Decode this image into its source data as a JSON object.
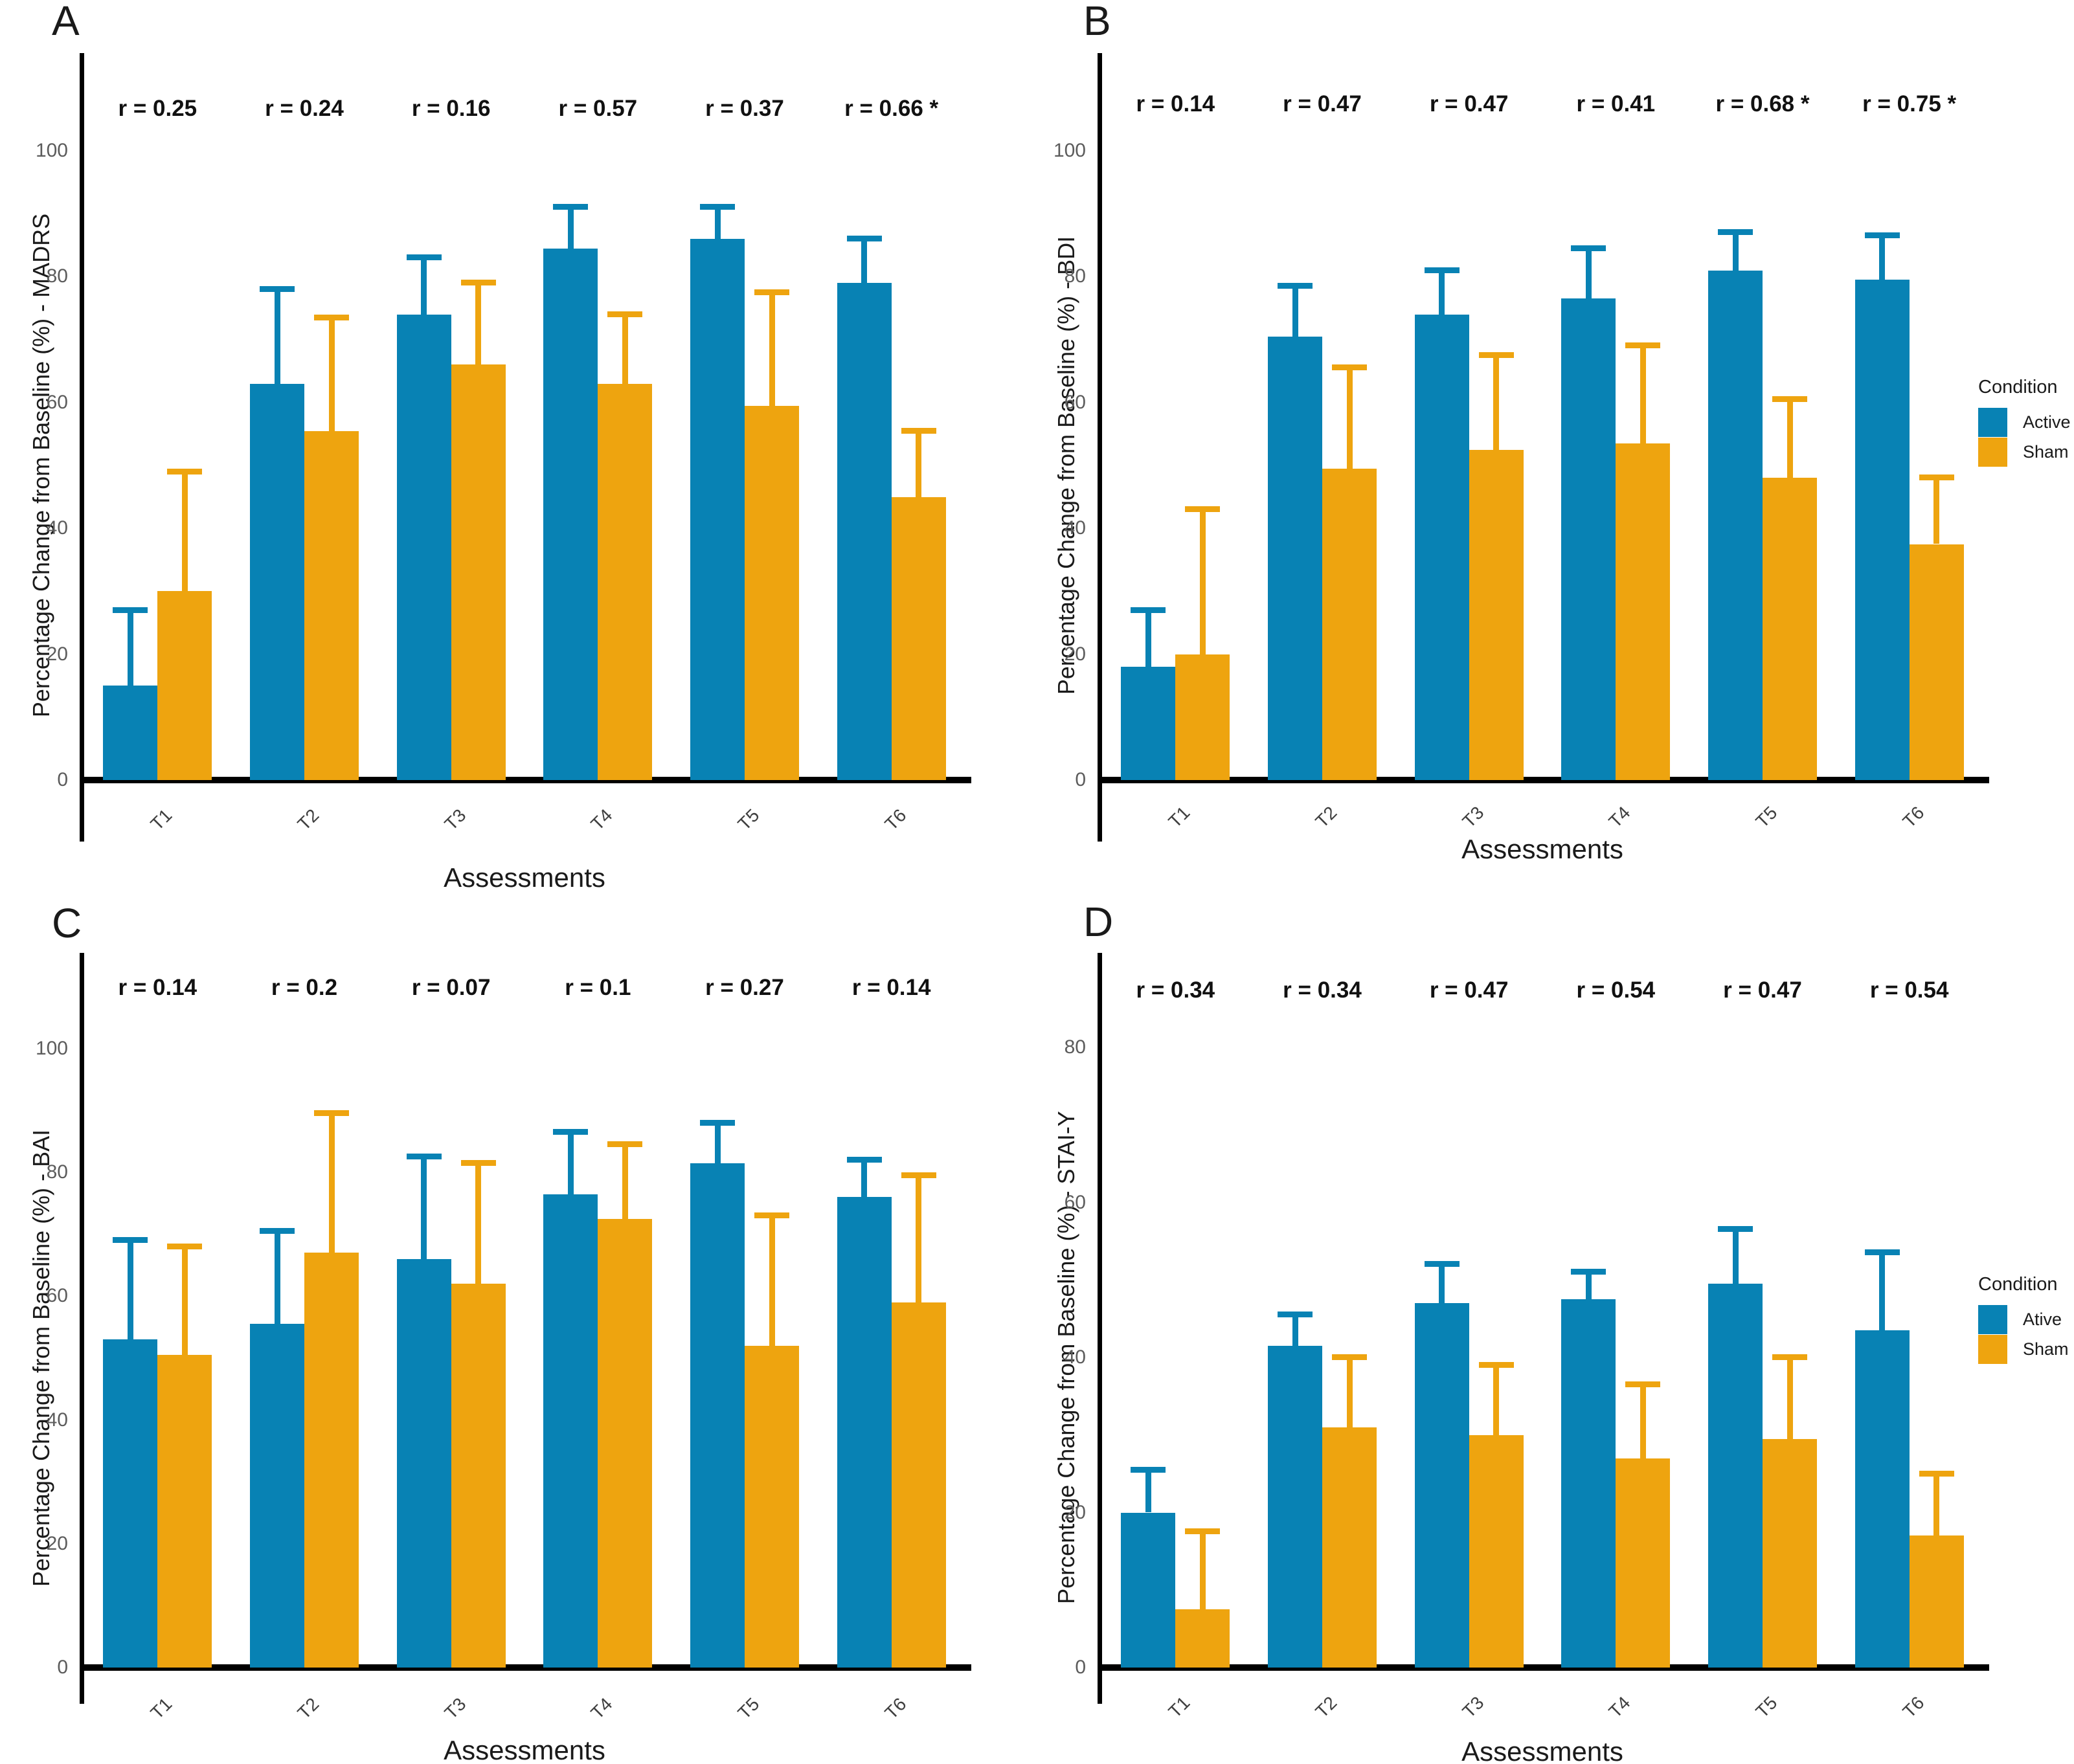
{
  "conditions": {
    "active_color": "#0882B4",
    "sham_color": "#EEA40F",
    "axis_color": "#000000"
  },
  "chart_data": [
    {
      "id": "A",
      "panel_label": "A",
      "type": "bar",
      "ylabel": "Percentage Change from Baseline (%) - MADRS",
      "xlabel": "Assessments",
      "categories": [
        "T1",
        "T2",
        "T3",
        "T4",
        "T5",
        "T6"
      ],
      "yticks": [
        0,
        20,
        40,
        60,
        80,
        100
      ],
      "ylim": [
        0,
        100
      ],
      "grid": false,
      "r_labels": [
        "r = 0.25",
        "r = 0.24",
        "r = 0.16",
        "r = 0.57",
        "r = 0.37",
        "r = 0.66 *"
      ],
      "series": [
        {
          "name": "Active",
          "color": "#0882B4",
          "values": [
            15,
            63,
            74,
            84.5,
            86,
            79
          ],
          "error_top": [
            27,
            78,
            83,
            91,
            91,
            86
          ]
        },
        {
          "name": "Sham",
          "color": "#EEA40F",
          "values": [
            30,
            55.5,
            66,
            63,
            59.5,
            45
          ],
          "error_top": [
            49,
            73.5,
            79,
            74,
            77.5,
            55.5
          ]
        }
      ],
      "legend": null
    },
    {
      "id": "B",
      "panel_label": "B",
      "type": "bar",
      "ylabel": "Percentage Change from Baseline (%) - BDI",
      "xlabel": "Assessments",
      "categories": [
        "T1",
        "T2",
        "T3",
        "T4",
        "T5",
        "T6"
      ],
      "yticks": [
        0,
        20,
        40,
        60,
        80,
        100
      ],
      "ylim": [
        0,
        100
      ],
      "grid": false,
      "r_labels": [
        "r = 0.14",
        "r = 0.47",
        "r = 0.47",
        "r = 0.41",
        "r = 0.68 *",
        "r = 0.75 *"
      ],
      "series": [
        {
          "name": "Active",
          "color": "#0882B4",
          "values": [
            18,
            70.5,
            74,
            76.5,
            81,
            79.5
          ],
          "error_top": [
            27,
            78.5,
            81,
            84.5,
            87,
            86.5
          ]
        },
        {
          "name": "Sham",
          "color": "#EEA40F",
          "values": [
            20,
            49.5,
            52.5,
            53.5,
            48,
            37.5
          ],
          "error_top": [
            43,
            65.5,
            67.5,
            69,
            60.5,
            48
          ]
        }
      ],
      "legend": {
        "title": "Condition",
        "items": [
          "Active",
          "Sham"
        ]
      }
    },
    {
      "id": "C",
      "panel_label": "C",
      "type": "bar",
      "ylabel": "Percentage Change from Baseline (%) - BAI",
      "xlabel": "Assessments",
      "categories": [
        "T1",
        "T2",
        "T3",
        "T4",
        "T5",
        "T6"
      ],
      "yticks": [
        0,
        20,
        40,
        60,
        80,
        100
      ],
      "ylim": [
        0,
        100
      ],
      "grid": false,
      "r_labels": [
        "r = 0.14",
        "r = 0.2",
        "r = 0.07",
        "r = 0.1",
        "r = 0.27",
        "r = 0.14"
      ],
      "series": [
        {
          "name": "Active",
          "color": "#0882B4",
          "values": [
            53,
            55.5,
            66,
            76.5,
            81.5,
            76
          ],
          "error_top": [
            69,
            70.5,
            82.5,
            86.5,
            88,
            82
          ]
        },
        {
          "name": "Sham",
          "color": "#EEA40F",
          "values": [
            50.5,
            67,
            62,
            72.5,
            52,
            59
          ],
          "error_top": [
            68,
            89.5,
            81.5,
            84.5,
            73,
            79.5
          ]
        }
      ],
      "legend": null
    },
    {
      "id": "D",
      "panel_label": "D",
      "type": "bar",
      "ylabel": "Percentage Change from Baseline (%) - STAI-Y",
      "xlabel": "Assessments",
      "categories": [
        "T1",
        "T2",
        "T3",
        "T4",
        "T5",
        "T6"
      ],
      "yticks": [
        0,
        20,
        40,
        60,
        80
      ],
      "ylim": [
        0,
        80
      ],
      "grid": false,
      "r_labels": [
        "r = 0.34",
        "r = 0.34",
        "r = 0.47",
        "r = 0.54",
        "r = 0.47",
        "r = 0.54"
      ],
      "series": [
        {
          "name": "Ative",
          "color": "#0882B4",
          "values": [
            20,
            41.5,
            47,
            47.5,
            49.5,
            43.5
          ],
          "error_top": [
            25.5,
            45.5,
            52,
            51,
            56.5,
            53.5
          ]
        },
        {
          "name": "Sham",
          "color": "#EEA40F",
          "values": [
            7.5,
            31,
            30,
            27,
            29.5,
            17
          ],
          "error_top": [
            17.5,
            40,
            39,
            36.5,
            40,
            25
          ]
        }
      ],
      "legend": {
        "title": "Condition",
        "items": [
          "Ative",
          "Sham"
        ]
      }
    }
  ]
}
